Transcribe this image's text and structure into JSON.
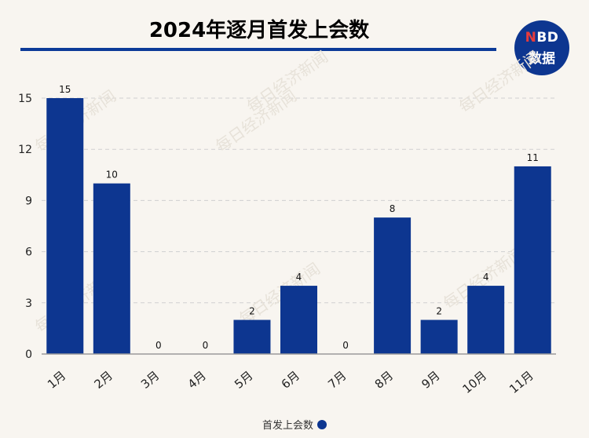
{
  "header": {
    "title": "2024年逐月首发上会数",
    "logo_top": "NBD",
    "logo_top_accent": "N",
    "logo_top_rest": "BD",
    "logo_bottom": "数据"
  },
  "watermark": "每日经济新闻",
  "colors": {
    "bar": "#0d3690",
    "accent": "#e63b3b",
    "background": "#f8f5f0"
  },
  "chart_data": {
    "type": "bar",
    "title": "2024年逐月首发上会数",
    "categories": [
      "1月",
      "2月",
      "3月",
      "4月",
      "5月",
      "6月",
      "7月",
      "8月",
      "9月",
      "10月",
      "11月"
    ],
    "series": [
      {
        "name": "首发上会数",
        "values": [
          15,
          10,
          0,
          0,
          2,
          4,
          0,
          8,
          2,
          4,
          11
        ]
      }
    ],
    "ylim": [
      0,
      15
    ],
    "yticks": [
      0,
      3,
      6,
      9,
      12,
      15
    ],
    "grid": true,
    "legend_position": "bottom",
    "data_labels": true
  }
}
